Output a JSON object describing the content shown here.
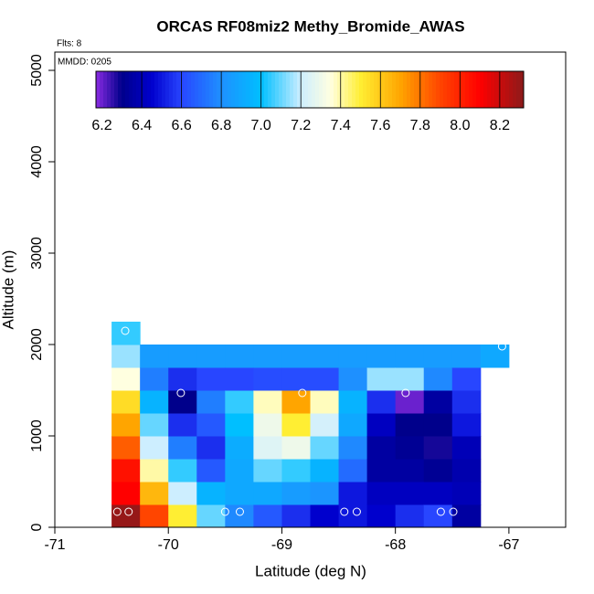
{
  "chart_data": {
    "type": "heatmap",
    "title": "ORCAS RF08miz2 Methy_Bromide_AWAS",
    "subtitle": "Flts: 8",
    "annotation": "MMDD: 0205",
    "xlabel": "Latitude (deg N)",
    "ylabel": "Altitude (m)",
    "xlim": [
      -71,
      -66.5
    ],
    "ylim": [
      0,
      5200
    ],
    "xticks": [
      -71,
      -70,
      -69,
      -68,
      -67
    ],
    "yticks": [
      0,
      1000,
      2000,
      3000,
      4000,
      5000
    ],
    "cell_width": 0.25,
    "cell_height": 250,
    "cells": [
      [
        -70.5,
        0,
        8.3
      ],
      [
        -70.5,
        250,
        8.1
      ],
      [
        -70.5,
        500,
        8.05
      ],
      [
        -70.5,
        750,
        7.85
      ],
      [
        -70.5,
        1000,
        7.7
      ],
      [
        -70.5,
        1250,
        7.55
      ],
      [
        -70.5,
        1500,
        7.35
      ],
      [
        -70.5,
        1750,
        7.15
      ],
      [
        -70.5,
        2000,
        7.05
      ],
      [
        -70.25,
        0,
        7.9
      ],
      [
        -70.25,
        250,
        7.65
      ],
      [
        -70.25,
        500,
        7.4
      ],
      [
        -70.25,
        750,
        7.2
      ],
      [
        -70.25,
        1000,
        7.1
      ],
      [
        -70.25,
        1250,
        6.95
      ],
      [
        -70.25,
        1500,
        6.75
      ],
      [
        -70.25,
        1750,
        6.85
      ],
      [
        -70,
        0,
        7.5
      ],
      [
        -70,
        250,
        7.2
      ],
      [
        -70,
        500,
        7.05
      ],
      [
        -70,
        750,
        6.75
      ],
      [
        -70,
        1000,
        6.55
      ],
      [
        -70,
        1250,
        6.3
      ],
      [
        -70,
        1500,
        6.55
      ],
      [
        -70,
        1750,
        6.85
      ],
      [
        -69.75,
        0,
        7.1
      ],
      [
        -69.75,
        250,
        6.95
      ],
      [
        -69.75,
        500,
        6.65
      ],
      [
        -69.75,
        750,
        6.55
      ],
      [
        -69.75,
        1000,
        6.65
      ],
      [
        -69.75,
        1250,
        6.75
      ],
      [
        -69.75,
        1500,
        6.6
      ],
      [
        -69.75,
        1750,
        6.85
      ],
      [
        -69.5,
        0,
        6.78
      ],
      [
        -69.5,
        250,
        6.9
      ],
      [
        -69.5,
        500,
        6.9
      ],
      [
        -69.5,
        750,
        6.92
      ],
      [
        -69.5,
        1000,
        7.0
      ],
      [
        -69.5,
        1250,
        7.05
      ],
      [
        -69.5,
        1500,
        6.6
      ],
      [
        -69.5,
        1750,
        6.85
      ],
      [
        -69.25,
        0,
        6.65
      ],
      [
        -69.25,
        250,
        6.9
      ],
      [
        -69.25,
        500,
        7.1
      ],
      [
        -69.25,
        750,
        7.25
      ],
      [
        -69.25,
        1000,
        7.3
      ],
      [
        -69.25,
        1250,
        7.38
      ],
      [
        -69.25,
        1500,
        6.62
      ],
      [
        -69.25,
        1750,
        6.85
      ],
      [
        -69,
        0,
        6.55
      ],
      [
        -69,
        250,
        6.85
      ],
      [
        -69,
        500,
        7.05
      ],
      [
        -69,
        750,
        7.3
      ],
      [
        -69,
        1000,
        7.5
      ],
      [
        -69,
        1250,
        7.7
      ],
      [
        -69,
        1500,
        6.62
      ],
      [
        -69,
        1750,
        6.85
      ],
      [
        -68.75,
        0,
        6.45
      ],
      [
        -68.75,
        250,
        6.82
      ],
      [
        -68.75,
        500,
        6.95
      ],
      [
        -68.75,
        750,
        7.1
      ],
      [
        -68.75,
        1000,
        7.22
      ],
      [
        -68.75,
        1250,
        7.38
      ],
      [
        -68.75,
        1500,
        6.62
      ],
      [
        -68.75,
        1750,
        6.85
      ],
      [
        -68.5,
        0,
        6.5
      ],
      [
        -68.5,
        250,
        6.5
      ],
      [
        -68.5,
        500,
        6.7
      ],
      [
        -68.5,
        750,
        6.78
      ],
      [
        -68.5,
        1000,
        6.9
      ],
      [
        -68.5,
        1250,
        6.95
      ],
      [
        -68.5,
        1500,
        6.8
      ],
      [
        -68.5,
        1750,
        6.85
      ],
      [
        -68.25,
        0,
        6.45
      ],
      [
        -68.25,
        250,
        6.42
      ],
      [
        -68.25,
        500,
        6.35
      ],
      [
        -68.25,
        750,
        6.35
      ],
      [
        -68.25,
        1000,
        6.42
      ],
      [
        -68.25,
        1250,
        6.55
      ],
      [
        -68.25,
        1500,
        7.15
      ],
      [
        -68.25,
        1750,
        6.85
      ],
      [
        -68,
        0,
        6.55
      ],
      [
        -68,
        250,
        6.42
      ],
      [
        -68,
        500,
        6.35
      ],
      [
        -68,
        750,
        6.32
      ],
      [
        -68,
        1000,
        6.3
      ],
      [
        -68,
        1250,
        6.2
      ],
      [
        -68,
        1500,
        7.15
      ],
      [
        -68,
        1750,
        6.85
      ],
      [
        -67.75,
        0,
        6.6
      ],
      [
        -67.75,
        250,
        6.42
      ],
      [
        -67.75,
        500,
        6.32
      ],
      [
        -67.75,
        750,
        6.28
      ],
      [
        -67.75,
        1000,
        6.3
      ],
      [
        -67.75,
        1250,
        6.35
      ],
      [
        -67.75,
        1500,
        6.78
      ],
      [
        -67.75,
        1750,
        6.85
      ],
      [
        -67.5,
        0,
        6.35
      ],
      [
        -67.5,
        250,
        6.4
      ],
      [
        -67.5,
        500,
        6.38
      ],
      [
        -67.5,
        750,
        6.4
      ],
      [
        -67.5,
        1000,
        6.5
      ],
      [
        -67.5,
        1250,
        6.55
      ],
      [
        -67.5,
        1500,
        6.6
      ],
      [
        -67.5,
        1750,
        6.85
      ],
      [
        -67.25,
        1750,
        6.9
      ]
    ],
    "points": {
      "x": [
        -70.45,
        -70.35,
        -70.38,
        -69.89,
        -69.5,
        -69.37,
        -68.82,
        -68.45,
        -68.34,
        -67.91,
        -67.6,
        -67.49,
        -67.06
      ],
      "y": [
        170,
        170,
        2150,
        1470,
        170,
        170,
        1470,
        170,
        170,
        1470,
        170,
        170,
        1980
      ],
      "color": "#ffffff"
    },
    "colorbar": {
      "range": [
        6.17,
        8.32
      ],
      "ticks": [
        6.2,
        6.4,
        6.6,
        6.8,
        7.0,
        7.2,
        7.4,
        7.6,
        7.8,
        8.0,
        8.2
      ],
      "colormap": [
        [
          6.17,
          "#8a2be2"
        ],
        [
          6.3,
          "#00008b"
        ],
        [
          6.45,
          "#0000cd"
        ],
        [
          6.6,
          "#2846ff"
        ],
        [
          6.8,
          "#1e90ff"
        ],
        [
          7.0,
          "#00bfff"
        ],
        [
          7.2,
          "#cdeeff"
        ],
        [
          7.35,
          "#ffffe0"
        ],
        [
          7.5,
          "#ffee33"
        ],
        [
          7.7,
          "#ffa500"
        ],
        [
          7.9,
          "#ff4500"
        ],
        [
          8.1,
          "#ff0000"
        ],
        [
          8.32,
          "#8b1a1a"
        ]
      ]
    }
  }
}
